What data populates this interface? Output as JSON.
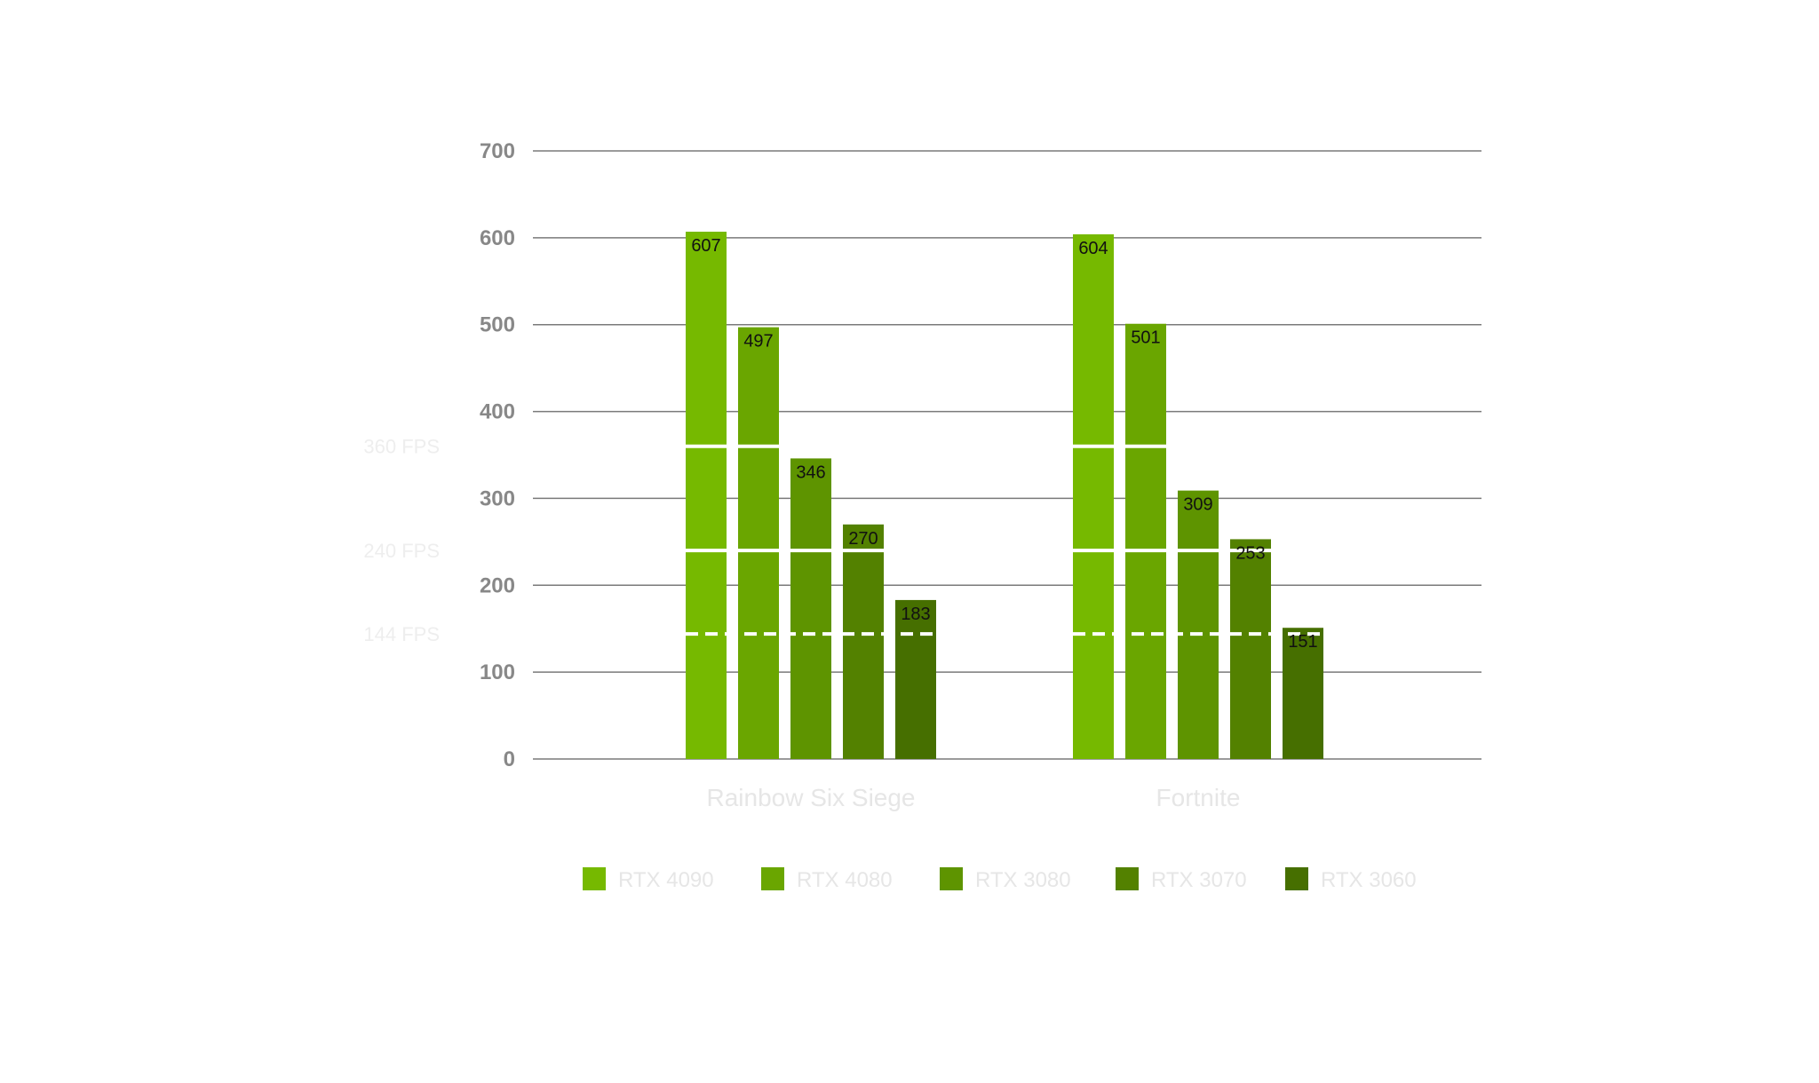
{
  "chart_data": {
    "type": "bar",
    "categories": [
      "Rainbow Six Siege",
      "Fortnite"
    ],
    "series": [
      {
        "name": "RTX 4090",
        "color": "#76b900",
        "values": [
          607,
          604
        ]
      },
      {
        "name": "RTX 4080",
        "color": "#6aa600",
        "values": [
          497,
          501
        ]
      },
      {
        "name": "RTX 3080",
        "color": "#5e9400",
        "values": [
          346,
          309
        ]
      },
      {
        "name": "RTX 3070",
        "color": "#538100",
        "values": [
          270,
          253
        ]
      },
      {
        "name": "RTX 3060",
        "color": "#466f00",
        "values": [
          183,
          151
        ]
      }
    ],
    "ylim": [
      0,
      700
    ],
    "yticks": [
      0,
      100,
      200,
      300,
      400,
      500,
      600,
      700
    ],
    "reference_lines": [
      {
        "label": "360 FPS",
        "value": 360,
        "style": "solid"
      },
      {
        "label": "240 FPS",
        "value": 240,
        "style": "solid"
      },
      {
        "label": "144 FPS",
        "value": 144,
        "style": "dashed"
      }
    ],
    "grid": true,
    "legend_position": "bottom"
  }
}
